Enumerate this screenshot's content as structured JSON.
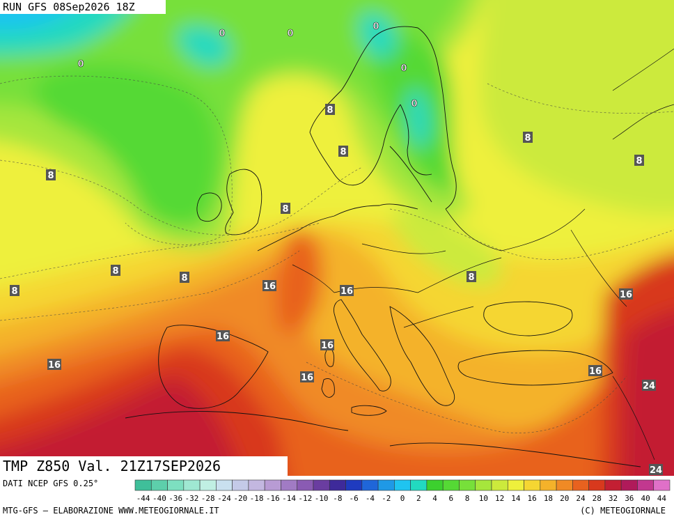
{
  "header": {
    "run_label": "RUN GFS 08Sep2026 18Z"
  },
  "map_title": "TMP Z850 Val. 21Z17SEP2026",
  "footer": {
    "source": "DATI NCEP GFS 0.25°",
    "credit": "MTG-GFS — ELABORAZIONE WWW.METEOGIORNALE.IT",
    "copyright": "(C) METEOGIORNALE"
  },
  "legend": {
    "ticks": [
      "-44",
      "-40",
      "-36",
      "-32",
      "-28",
      "-24",
      "-20",
      "-18",
      "-16",
      "-14",
      "-12",
      "-10",
      "-8",
      "-6",
      "-4",
      "-2",
      "0",
      "2",
      "4",
      "6",
      "8",
      "10",
      "12",
      "14",
      "16",
      "18",
      "20",
      "24",
      "28",
      "32",
      "36",
      "40",
      "44"
    ],
    "colors": [
      "#3fbf9a",
      "#5dcfab",
      "#7ddfc0",
      "#9fe8d2",
      "#c0efe3",
      "#c9e0ef",
      "#c4cae8",
      "#c3b7e0",
      "#b89bd4",
      "#a17bc4",
      "#8a5bb3",
      "#6a3da0",
      "#3e2a9a",
      "#1f3bbf",
      "#1f66d9",
      "#1f99e6",
      "#1fc4f0",
      "#22d9c0",
      "#3cd02e",
      "#55d935",
      "#77e03a",
      "#a6e63c",
      "#ccea3c",
      "#eef03c",
      "#f5d632",
      "#f4b22a",
      "#f08a25",
      "#e8621f",
      "#d8391d",
      "#c31f33",
      "#b01a5a",
      "#c2388f",
      "#e070c8"
    ]
  },
  "isotherm_labels": [
    {
      "name": "label-0-a",
      "text": "0"
    },
    {
      "name": "label-0-b",
      "text": "0"
    },
    {
      "name": "label-0-c",
      "text": "0"
    },
    {
      "name": "label-0-d",
      "text": "0"
    },
    {
      "name": "label-0-e",
      "text": "0"
    },
    {
      "name": "label-0-f",
      "text": "0"
    },
    {
      "name": "label-8-a",
      "text": "8"
    },
    {
      "name": "label-8-b",
      "text": "8"
    },
    {
      "name": "label-8-c",
      "text": "8"
    },
    {
      "name": "label-8-d",
      "text": "8"
    },
    {
      "name": "label-8-e",
      "text": "8"
    },
    {
      "name": "label-8-f",
      "text": "8"
    },
    {
      "name": "label-8-g",
      "text": "8"
    },
    {
      "name": "label-8-h",
      "text": "8"
    },
    {
      "name": "label-8-i",
      "text": "8"
    },
    {
      "name": "label-8-j",
      "text": "8"
    },
    {
      "name": "label-16-a",
      "text": "16"
    },
    {
      "name": "label-16-b",
      "text": "16"
    },
    {
      "name": "label-16-c",
      "text": "16"
    },
    {
      "name": "label-16-d",
      "text": "16"
    },
    {
      "name": "label-16-e",
      "text": "16"
    },
    {
      "name": "label-16-f",
      "text": "16"
    },
    {
      "name": "label-16-g",
      "text": "16"
    },
    {
      "name": "label-16-h",
      "text": "16"
    },
    {
      "name": "label-24-a",
      "text": "24"
    },
    {
      "name": "label-24-b",
      "text": "24"
    }
  ]
}
